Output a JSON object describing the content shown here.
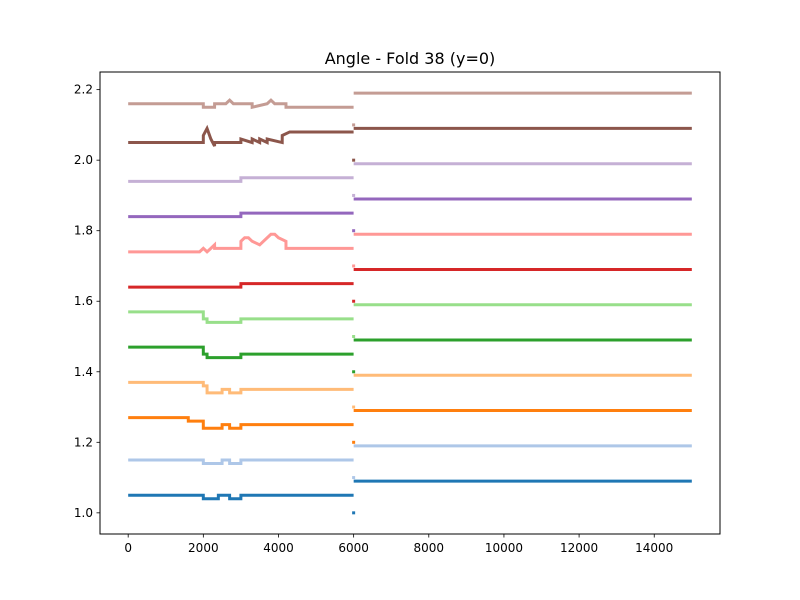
{
  "chart_data": {
    "type": "line",
    "title": "Angle - Fold 38 (y=0)",
    "xlabel": "",
    "ylabel": "",
    "xlim": [
      -750,
      15750
    ],
    "ylim": [
      0.94,
      2.25
    ],
    "xticks": [
      0,
      2000,
      4000,
      6000,
      8000,
      10000,
      12000,
      14000
    ],
    "xtick_labels": [
      "0",
      "2000",
      "4000",
      "6000",
      "8000",
      "10000",
      "12000",
      "14000"
    ],
    "yticks": [
      1.0,
      1.2,
      1.4,
      1.6,
      1.8,
      2.0,
      2.2
    ],
    "ytick_labels": [
      "1.0",
      "1.2",
      "1.4",
      "1.6",
      "1.8",
      "2.0",
      "2.2"
    ],
    "grid": false,
    "legend": "none",
    "series": [
      {
        "color": "#1f77b4",
        "x": [
          0,
          1999,
          2000,
          2399,
          2400,
          2699,
          2700,
          2999,
          3000,
          5999,
          6000,
          6001,
          15000
        ],
        "y": [
          1.05,
          1.05,
          1.04,
          1.04,
          1.05,
          1.05,
          1.04,
          1.04,
          1.05,
          1.05,
          1.0,
          1.09,
          1.09
        ]
      },
      {
        "color": "#aec7e8",
        "x": [
          0,
          1999,
          2000,
          2499,
          2500,
          2699,
          2700,
          2999,
          3000,
          5999,
          6000,
          6001,
          15000
        ],
        "y": [
          1.15,
          1.15,
          1.14,
          1.14,
          1.15,
          1.15,
          1.14,
          1.14,
          1.15,
          1.15,
          1.1,
          1.19,
          1.19
        ]
      },
      {
        "color": "#ff7f0e",
        "x": [
          0,
          1599,
          1600,
          1999,
          2000,
          2499,
          2500,
          2699,
          2700,
          2999,
          3000,
          5999,
          6000,
          6001,
          15000
        ],
        "y": [
          1.27,
          1.27,
          1.26,
          1.26,
          1.24,
          1.24,
          1.25,
          1.25,
          1.24,
          1.24,
          1.25,
          1.25,
          1.2,
          1.29,
          1.29
        ]
      },
      {
        "color": "#ffbb78",
        "x": [
          0,
          1999,
          2000,
          2099,
          2100,
          2499,
          2500,
          2699,
          2700,
          2999,
          3000,
          5999,
          6000,
          6001,
          15000
        ],
        "y": [
          1.37,
          1.37,
          1.36,
          1.36,
          1.34,
          1.34,
          1.35,
          1.35,
          1.34,
          1.34,
          1.35,
          1.35,
          1.3,
          1.39,
          1.39
        ]
      },
      {
        "color": "#2ca02c",
        "x": [
          0,
          1999,
          2000,
          2099,
          2100,
          2999,
          3000,
          5999,
          6000,
          6001,
          15000
        ],
        "y": [
          1.47,
          1.47,
          1.45,
          1.45,
          1.44,
          1.44,
          1.45,
          1.45,
          1.4,
          1.49,
          1.49
        ]
      },
      {
        "color": "#98df8a",
        "x": [
          0,
          1999,
          2000,
          2099,
          2100,
          2999,
          3000,
          5999,
          6000,
          6001,
          15000
        ],
        "y": [
          1.57,
          1.57,
          1.55,
          1.55,
          1.54,
          1.54,
          1.55,
          1.55,
          1.5,
          1.59,
          1.59
        ]
      },
      {
        "color": "#d62728",
        "x": [
          0,
          2999,
          3000,
          5999,
          6000,
          6001,
          15000
        ],
        "y": [
          1.64,
          1.64,
          1.65,
          1.65,
          1.6,
          1.69,
          1.69
        ]
      },
      {
        "color": "#ff9896",
        "x": [
          0,
          1899,
          2000,
          2099,
          2200,
          2299,
          2300,
          2999,
          3000,
          3099,
          3200,
          3299,
          3500,
          3599,
          3700,
          3799,
          3900,
          3999,
          4000,
          4199,
          4200,
          5999,
          6000,
          6001,
          15000
        ],
        "y": [
          1.74,
          1.74,
          1.75,
          1.74,
          1.75,
          1.76,
          1.75,
          1.75,
          1.77,
          1.78,
          1.78,
          1.77,
          1.76,
          1.77,
          1.78,
          1.79,
          1.79,
          1.78,
          1.78,
          1.77,
          1.75,
          1.75,
          1.7,
          1.79,
          1.79
        ]
      },
      {
        "color": "#9467bd",
        "x": [
          0,
          2999,
          3000,
          5999,
          6000,
          6001,
          15000
        ],
        "y": [
          1.84,
          1.84,
          1.85,
          1.85,
          1.8,
          1.89,
          1.89
        ]
      },
      {
        "color": "#c5b0d5",
        "x": [
          0,
          2999,
          3000,
          5999,
          6000,
          6001,
          15000
        ],
        "y": [
          1.94,
          1.94,
          1.95,
          1.95,
          1.9,
          1.99,
          1.99
        ]
      },
      {
        "color": "#8c564b",
        "x": [
          0,
          1999,
          2000,
          2099,
          2200,
          2299,
          2300,
          2999,
          3000,
          3299,
          3300,
          3499,
          3500,
          3699,
          3700,
          4099,
          4100,
          4299,
          4300,
          5999,
          6000,
          6001,
          15000
        ],
        "y": [
          2.05,
          2.05,
          2.07,
          2.09,
          2.06,
          2.04,
          2.05,
          2.05,
          2.06,
          2.05,
          2.06,
          2.05,
          2.06,
          2.05,
          2.06,
          2.05,
          2.07,
          2.08,
          2.08,
          2.08,
          2.0,
          2.09,
          2.09
        ]
      },
      {
        "color": "#c49c94",
        "x": [
          0,
          1999,
          2000,
          2299,
          2300,
          2599,
          2700,
          2799,
          2900,
          3299,
          3300,
          3699,
          3800,
          3899,
          4000,
          4199,
          4200,
          5999,
          6000,
          6001,
          15000
        ],
        "y": [
          2.16,
          2.16,
          2.15,
          2.15,
          2.16,
          2.16,
          2.17,
          2.16,
          2.16,
          2.16,
          2.15,
          2.16,
          2.17,
          2.16,
          2.16,
          2.16,
          2.15,
          2.15,
          2.1,
          2.19,
          2.19
        ]
      }
    ]
  }
}
